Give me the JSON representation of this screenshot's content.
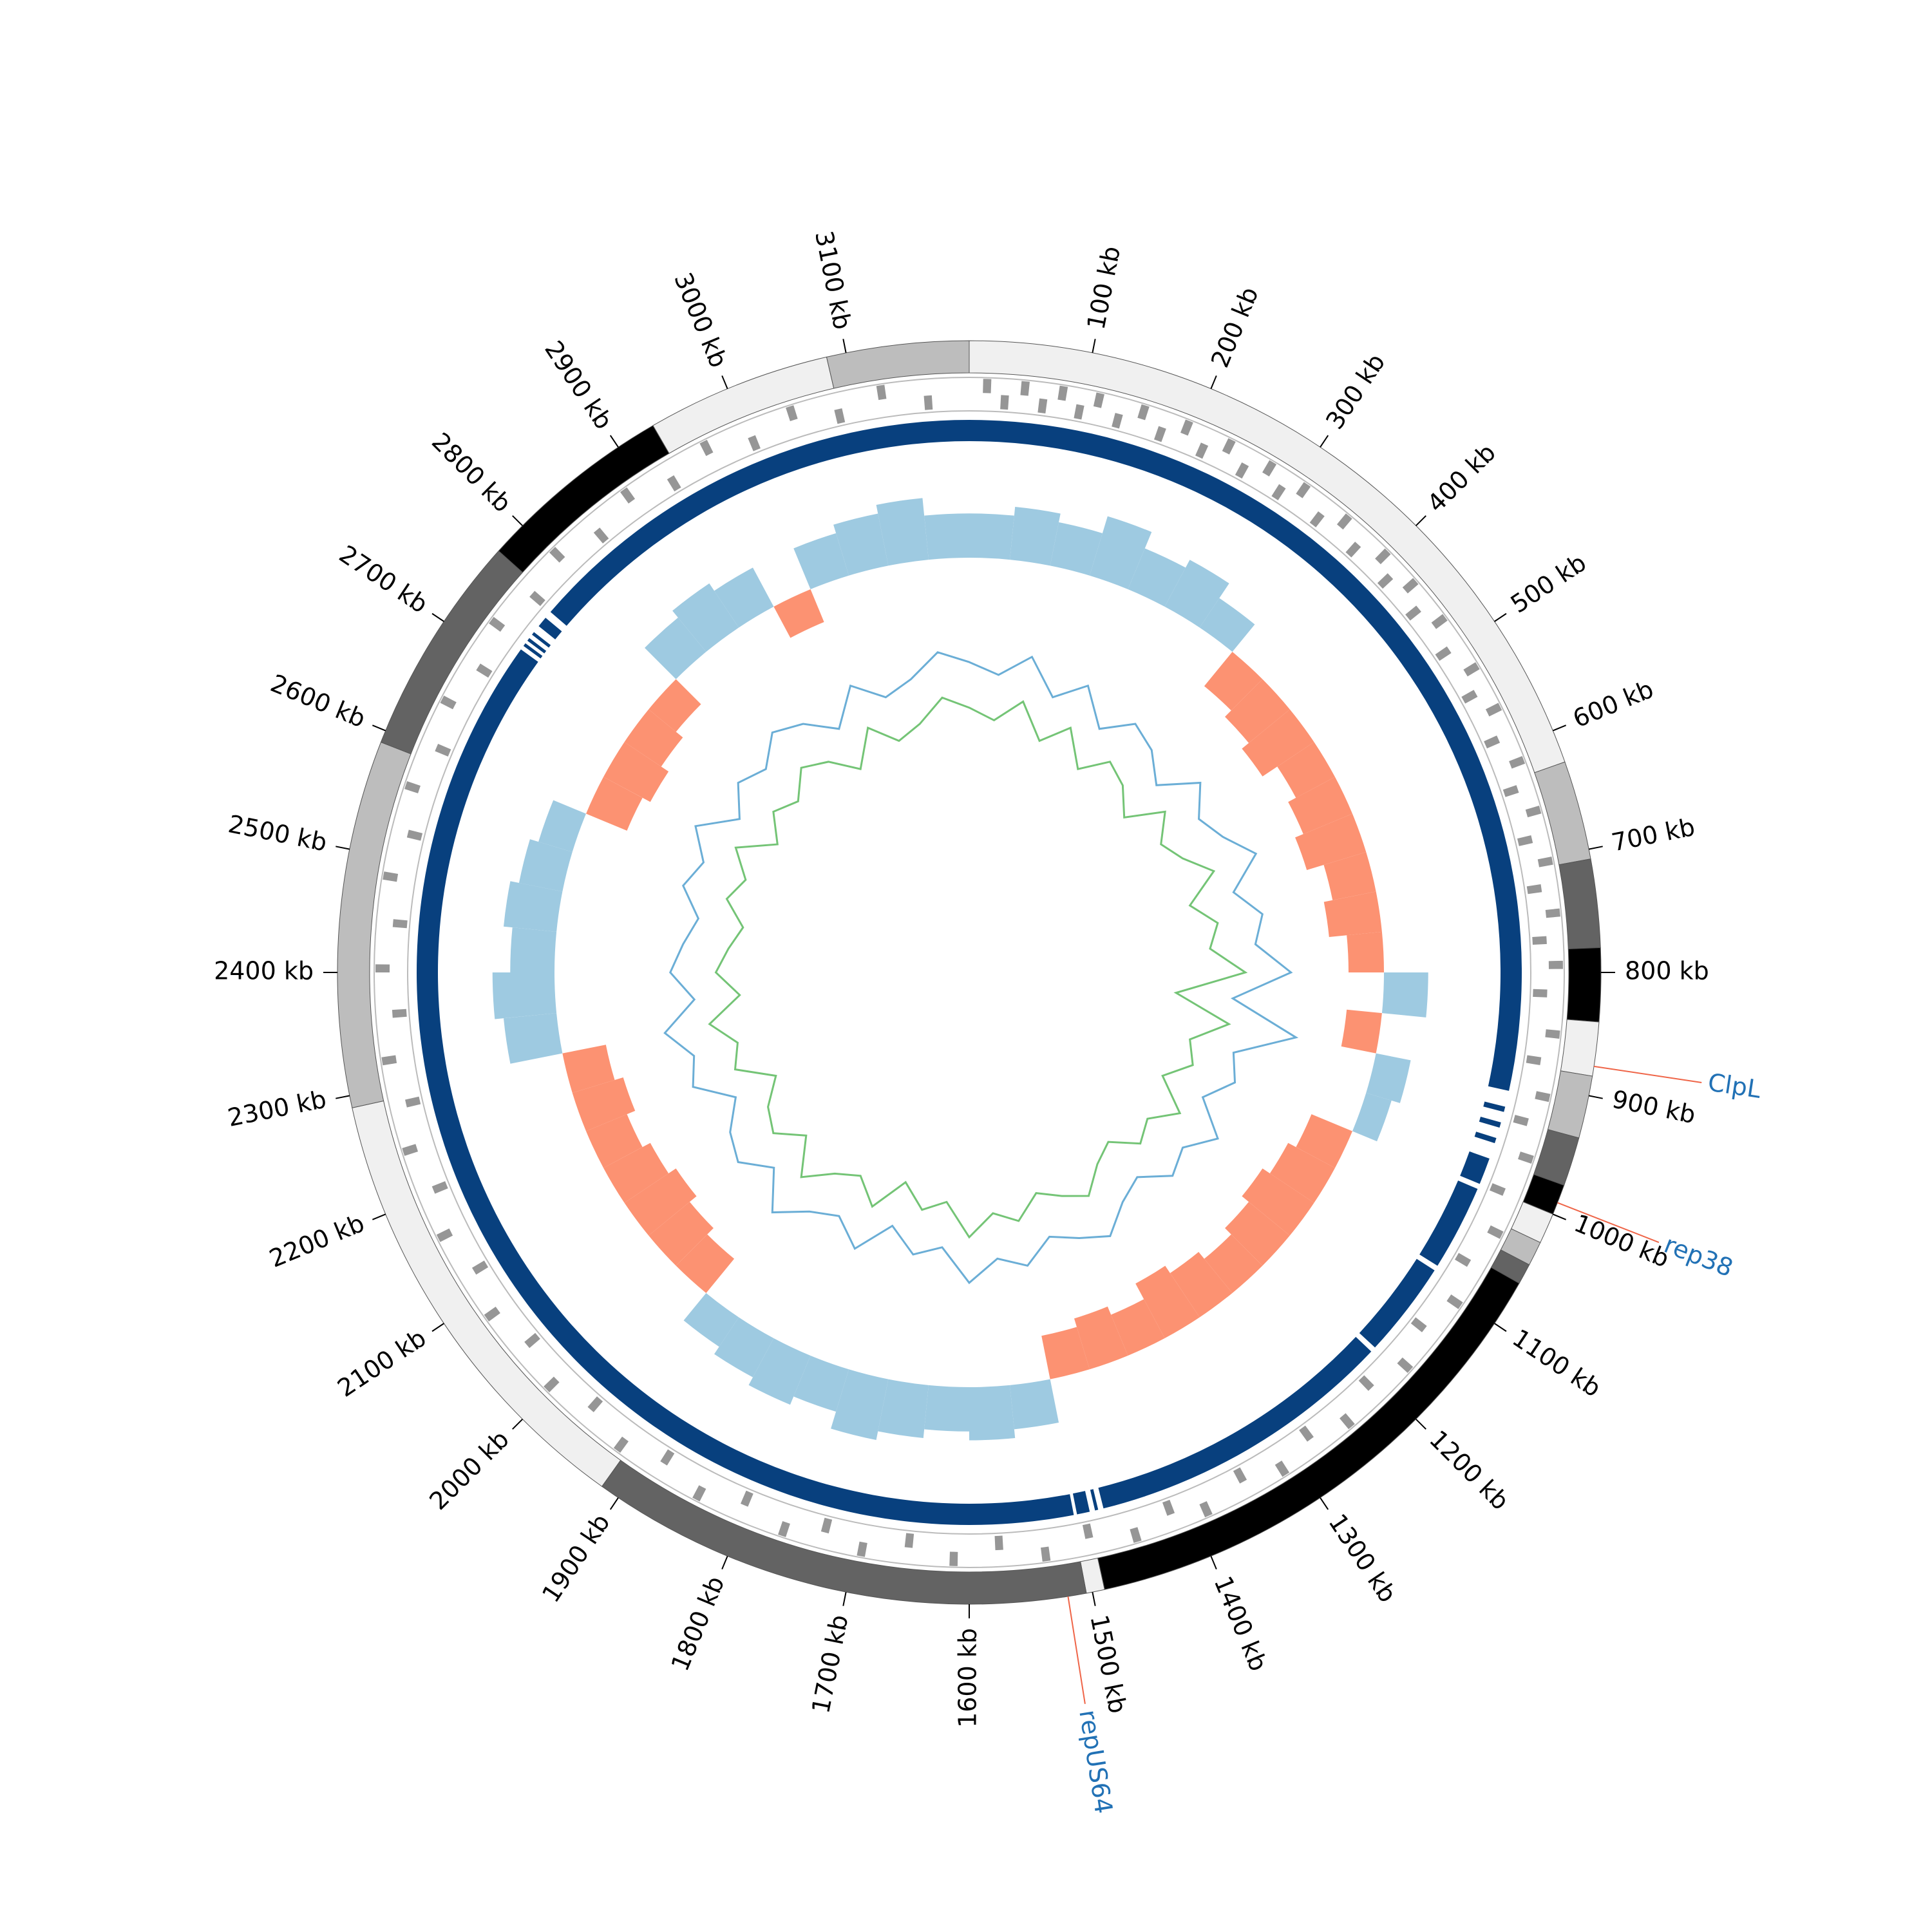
{
  "chart_data": {
    "type": "circular-genome",
    "xlim": [
      0,
      3200
    ],
    "xticks": [
      {
        "value": 100,
        "label": "100 kb"
      },
      {
        "value": 200,
        "label": "200 kb"
      },
      {
        "value": 300,
        "label": "300 kb"
      },
      {
        "value": 400,
        "label": "400 kb"
      },
      {
        "value": 500,
        "label": "500 kb"
      },
      {
        "value": 600,
        "label": "600 kb"
      },
      {
        "value": 700,
        "label": "700 kb"
      },
      {
        "value": 800,
        "label": "800 kb"
      },
      {
        "value": 900,
        "label": "900 kb"
      },
      {
        "value": 1000,
        "label": "1000 kb"
      },
      {
        "value": 1100,
        "label": "1100 kb"
      },
      {
        "value": 1200,
        "label": "1200 kb"
      },
      {
        "value": 1300,
        "label": "1300 kb"
      },
      {
        "value": 1400,
        "label": "1400 kb"
      },
      {
        "value": 1500,
        "label": "1500 kb"
      },
      {
        "value": 1600,
        "label": "1600 kb"
      },
      {
        "value": 1700,
        "label": "1700 kb"
      },
      {
        "value": 1800,
        "label": "1800 kb"
      },
      {
        "value": 1900,
        "label": "1900 kb"
      },
      {
        "value": 2000,
        "label": "2000 kb"
      },
      {
        "value": 2100,
        "label": "2100 kb"
      },
      {
        "value": 2200,
        "label": "2200 kb"
      },
      {
        "value": 2300,
        "label": "2300 kb"
      },
      {
        "value": 2400,
        "label": "2400 kb"
      },
      {
        "value": 2500,
        "label": "2500 kb"
      },
      {
        "value": 2600,
        "label": "2600 kb"
      },
      {
        "value": 2700,
        "label": "2700 kb"
      },
      {
        "value": 2800,
        "label": "2800 kb"
      },
      {
        "value": 2900,
        "label": "2900 kb"
      },
      {
        "value": 3000,
        "label": "3000 kb"
      },
      {
        "value": 3100,
        "label": "3100 kb"
      }
    ],
    "contigs": [
      {
        "start": 0,
        "end": 627,
        "color": "#f0f0f0"
      },
      {
        "start": 627,
        "end": 708,
        "color": "#bdbdbd"
      },
      {
        "start": 708,
        "end": 780,
        "color": "#636363"
      },
      {
        "start": 780,
        "end": 840,
        "color": "#000000"
      },
      {
        "start": 840,
        "end": 884,
        "color": "#f0f0f0"
      },
      {
        "start": 884,
        "end": 935,
        "color": "#bdbdbd"
      },
      {
        "start": 935,
        "end": 975,
        "color": "#636363"
      },
      {
        "start": 975,
        "end": 1000,
        "color": "#000000"
      },
      {
        "start": 1000,
        "end": 1025,
        "color": "#f0f0f0"
      },
      {
        "start": 1025,
        "end": 1045,
        "color": "#bdbdbd"
      },
      {
        "start": 1045,
        "end": 1062,
        "color": "#636363"
      },
      {
        "start": 1062,
        "end": 1490,
        "color": "#000000"
      },
      {
        "start": 1490,
        "end": 1505,
        "color": "#f0f0f0"
      },
      {
        "start": 1505,
        "end": 1916,
        "color": "#636363"
      },
      {
        "start": 1916,
        "end": 2290,
        "color": "#f0f0f0"
      },
      {
        "start": 2290,
        "end": 2590,
        "color": "#bdbdbd"
      },
      {
        "start": 2590,
        "end": 2772,
        "color": "#636363"
      },
      {
        "start": 2772,
        "end": 2933,
        "color": "#000000"
      },
      {
        "start": 2933,
        "end": 3084,
        "color": "#f0f0f0"
      },
      {
        "start": 3084,
        "end": 3200,
        "color": "#bdbdbd"
      }
    ],
    "genes_color": "#969696",
    "genes_forward": [
      12,
      45,
      78,
      110,
      150,
      190,
      230,
      270,
      305,
      350,
      395,
      430,
      470,
      520,
      560,
      610,
      655,
      700,
      745,
      790,
      850,
      905,
      960,
      1030,
      1100,
      1170,
      1240,
      1310,
      1385,
      1450,
      1530,
      1610,
      1690,
      1760,
      1840,
      1920,
      2000,
      2080,
      2160,
      2240,
      2320,
      2400,
      2480,
      2560,
      2640,
      2720,
      2800,
      2880,
      2960,
      3040,
      3120
    ],
    "genes_reverse": [
      28,
      62,
      95,
      130,
      170,
      210,
      250,
      288,
      330,
      372,
      412,
      450,
      495,
      540,
      585,
      632,
      678,
      722,
      768,
      815,
      875,
      930,
      995,
      1065,
      1135,
      1205,
      1275,
      1345,
      1415,
      1490,
      1570,
      1650,
      1725,
      1800,
      1880,
      1960,
      2040,
      2120,
      2200,
      2280,
      2360,
      2440,
      2520,
      2600,
      2680,
      2760,
      2840,
      2920,
      3000,
      3080,
      3160
    ],
    "alignment_color": "#08407e",
    "alignment": [
      [
        0,
        910
      ],
      [
        925,
        930
      ],
      [
        940,
        945
      ],
      [
        955,
        960
      ],
      [
        975,
        1000
      ],
      [
        1005,
        1085
      ],
      [
        1090,
        1180
      ],
      [
        1185,
        1475
      ],
      [
        1480,
        1483
      ],
      [
        1488,
        1500
      ],
      [
        1503,
        2718
      ],
      [
        2722,
        2725
      ],
      [
        2728,
        2731
      ],
      [
        2735,
        2738
      ],
      [
        2745,
        2755
      ],
      [
        2762,
        3200
      ]
    ],
    "x": [
      0,
      50,
      100,
      150,
      200,
      250,
      300,
      350,
      400,
      450,
      500,
      550,
      600,
      650,
      700,
      750,
      800,
      850,
      900,
      950,
      1000,
      1050,
      1100,
      1150,
      1200,
      1250,
      1300,
      1350,
      1400,
      1450,
      1500,
      1550,
      1600,
      1650,
      1700,
      1750,
      1800,
      1850,
      1900,
      1950,
      2000,
      2050,
      2100,
      2150,
      2200,
      2250,
      2300,
      2350,
      2400,
      2450,
      2500,
      2550,
      2600,
      2650,
      2700,
      2750,
      2800,
      2850,
      2900,
      2950,
      3000,
      3050,
      3100,
      3150
    ],
    "skew": {
      "positive_color": "#9ecae1",
      "negative_color": "#fc9272",
      "ylim": [
        -0.08,
        0.08
      ],
      "values": [
        0.05,
        0.06,
        0.05,
        0.07,
        0.05,
        0.06,
        0.04,
        -0.05,
        -0.06,
        -0.07,
        -0.05,
        -0.06,
        -0.07,
        -0.05,
        -0.06,
        -0.04,
        0.05,
        -0.04,
        0.04,
        0.03,
        -0.05,
        -0.06,
        -0.07,
        -0.06,
        -0.05,
        -0.06,
        -0.07,
        -0.05,
        -0.06,
        -0.05,
        0.05,
        0.06,
        0.05,
        0.06,
        0.07,
        0.05,
        0.06,
        0.05,
        0.04,
        -0.05,
        -0.06,
        -0.07,
        -0.06,
        -0.05,
        -0.06,
        -0.05,
        0.06,
        0.07,
        0.05,
        0.06,
        0.05,
        0.04,
        -0.05,
        -0.06,
        -0.05,
        -0.04,
        0.05,
        0.06,
        0.05,
        -0.04,
        0.05,
        0.06,
        0.07,
        0.05
      ]
    },
    "gc_ylim": [
      0.3,
      0.43
    ],
    "series": [
      {
        "color": "#6baed6",
        "values": [
          0.4,
          0.39,
          0.41,
          0.38,
          0.4,
          0.37,
          0.39,
          0.38,
          0.36,
          0.39,
          0.37,
          0.38,
          0.4,
          0.37,
          0.39,
          0.38,
          0.41,
          0.36,
          0.42,
          0.37,
          0.38,
          0.36,
          0.39,
          0.37,
          0.38,
          0.36,
          0.37,
          0.39,
          0.38,
          0.37,
          0.39,
          0.38,
          0.4,
          0.37,
          0.38,
          0.36,
          0.39,
          0.37,
          0.38,
          0.4,
          0.37,
          0.39,
          0.38,
          0.36,
          0.39,
          0.38,
          0.4,
          0.37,
          0.39,
          0.38,
          0.37,
          0.39,
          0.38,
          0.4,
          0.37,
          0.39,
          0.38,
          0.4,
          0.39,
          0.37,
          0.4,
          0.38,
          0.39,
          0.41
        ]
      },
      {
        "color": "#74c476",
        "values": [
          0.36,
          0.35,
          0.37,
          0.34,
          0.36,
          0.33,
          0.35,
          0.34,
          0.32,
          0.35,
          0.33,
          0.34,
          0.36,
          0.33,
          0.35,
          0.34,
          0.37,
          0.31,
          0.36,
          0.33,
          0.34,
          0.32,
          0.35,
          0.33,
          0.34,
          0.32,
          0.33,
          0.35,
          0.34,
          0.33,
          0.35,
          0.34,
          0.36,
          0.33,
          0.34,
          0.32,
          0.35,
          0.33,
          0.34,
          0.36,
          0.33,
          0.35,
          0.34,
          0.32,
          0.35,
          0.34,
          0.36,
          0.33,
          0.35,
          0.34,
          0.33,
          0.35,
          0.34,
          0.36,
          0.33,
          0.35,
          0.34,
          0.36,
          0.35,
          0.33,
          0.36,
          0.34,
          0.35,
          0.37
        ]
      }
    ],
    "annotation_color": "#2171b5",
    "annotation_line_color": "#ef6548",
    "annotations": [
      {
        "label": "ClpL",
        "position": 876
      },
      {
        "label": "rep38",
        "position": 990
      },
      {
        "label": "repUS64",
        "position": 1520
      }
    ]
  }
}
